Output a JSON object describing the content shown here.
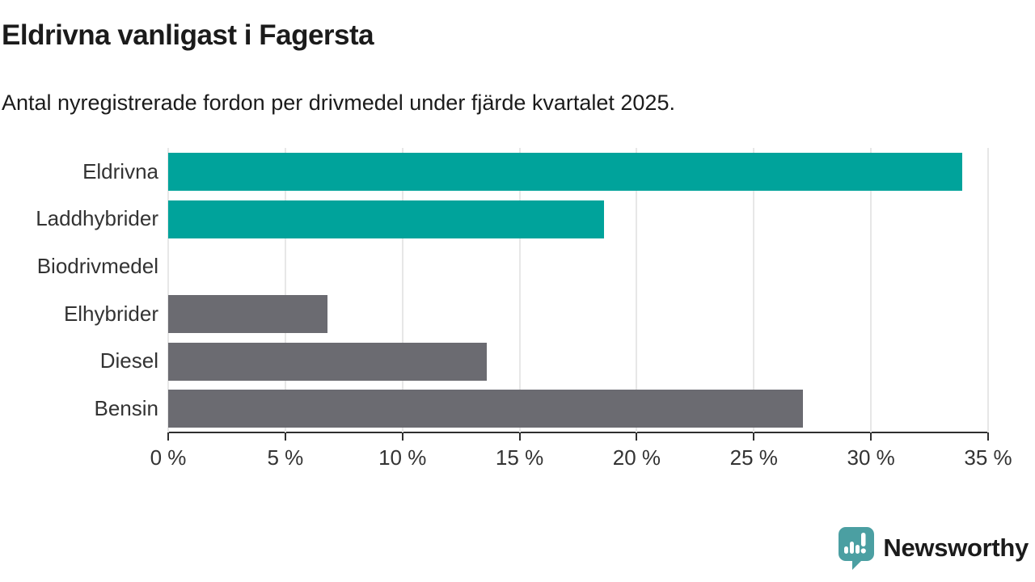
{
  "chart_data": {
    "type": "bar",
    "orientation": "horizontal",
    "title": "Eldrivna vanligast i Fagersta",
    "subtitle": "Antal nyregistrerade fordon per drivmedel under fjärde kvartalet 2025.",
    "categories": [
      "Eldrivna",
      "Laddhybrider",
      "Biodrivmedel",
      "Elhybrider",
      "Diesel",
      "Bensin"
    ],
    "values": [
      33.9,
      18.6,
      0,
      6.8,
      13.6,
      27.1
    ],
    "unit": "%",
    "xlim": [
      0,
      35
    ],
    "tick_step": 5,
    "tick_labels": [
      "0 %",
      "5 %",
      "10 %",
      "15 %",
      "20 %",
      "25 %",
      "30 %",
      "35 %"
    ],
    "grid": "vertical",
    "legend": "none",
    "xlabel": "",
    "ylabel": "",
    "bar_colors": [
      "#00a39b",
      "#00a39b",
      "#6b6b71",
      "#6b6b71",
      "#6b6b71",
      "#6b6b71"
    ],
    "colors": {
      "highlight": "#00a39b",
      "muted": "#6b6b71",
      "axis": "#2f2f2f",
      "gridline": "#e7e7e7",
      "tick_text": "#333333"
    }
  },
  "footer": {
    "brand": "Newsworthy",
    "brand_color": "#3f969b",
    "logo_icon": "newsworthy-speech-bubble-bar-chart-icon"
  }
}
